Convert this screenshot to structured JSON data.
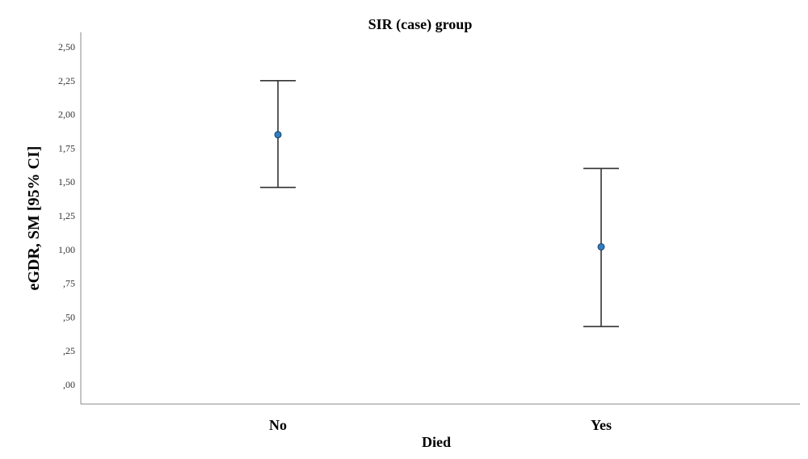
{
  "chart_data": {
    "type": "scatter",
    "title": "SIR (case) group",
    "xlabel": "Died",
    "ylabel": "eGDR, SM [95% CI]",
    "categories": [
      "No",
      "Yes"
    ],
    "series": [
      {
        "values": [
          1.85,
          1.02
        ],
        "ci_low": [
          1.46,
          0.43
        ],
        "ci_high": [
          2.25,
          1.6
        ]
      }
    ],
    "ylim": [
      0,
      2.5
    ],
    "yticks": [
      "2,50",
      "2,25",
      "2,00",
      "1,75",
      "1,50",
      "1,25",
      "1,00",
      ",75",
      ",50",
      ",25",
      ",00"
    ],
    "ytick_values": [
      2.5,
      2.25,
      2.0,
      1.75,
      1.5,
      1.25,
      1.0,
      0.75,
      0.5,
      0.25,
      0.0
    ],
    "grid": false,
    "colors": {
      "point": "#2f7fc1",
      "errbar": "#333333",
      "axis": "#888888"
    }
  }
}
